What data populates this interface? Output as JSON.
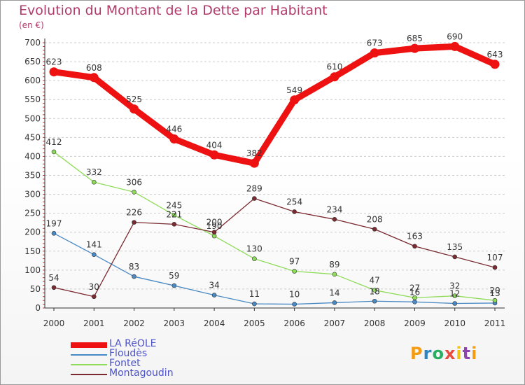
{
  "title": "Evolution du Montant de la Dette par Habitant",
  "unit_label": "(en €)",
  "logo": {
    "letters": [
      "P",
      "r",
      "o",
      "x",
      "i",
      "t",
      "i"
    ],
    "colors": [
      "#f39c12",
      "#2e86c1",
      "#27ae60",
      "#e74c3c",
      "#f1c40f",
      "#8e44ad",
      "#f39c12"
    ]
  },
  "chart_data": {
    "type": "line",
    "title": "Evolution du Montant de la Dette par Habitant",
    "ylabel": "(en €)",
    "xlabel": "",
    "categories": [
      "2000",
      "2001",
      "2002",
      "2003",
      "2004",
      "2005",
      "2006",
      "2007",
      "2008",
      "2009",
      "2010",
      "2011"
    ],
    "ylim": [
      0,
      700
    ],
    "yticks": [
      0,
      50,
      100,
      150,
      200,
      250,
      300,
      350,
      400,
      450,
      500,
      550,
      600,
      650,
      700
    ],
    "grid": "horizontal",
    "legend": "bottom-left",
    "series": [
      {
        "name": "LA RéOLE",
        "color": "#ee1111",
        "thick": true,
        "values": [
          623,
          608,
          525,
          446,
          404,
          382,
          549,
          610,
          673,
          685,
          690,
          643
        ]
      },
      {
        "name": "Floudès",
        "color": "#4a8ac4",
        "thick": false,
        "values": [
          197,
          141,
          83,
          59,
          34,
          11,
          10,
          14,
          18,
          16,
          12,
          13
        ]
      },
      {
        "name": "Fontet",
        "color": "#8fdc5a",
        "thick": false,
        "values": [
          412,
          332,
          306,
          245,
          190,
          130,
          97,
          89,
          47,
          27,
          32,
          20
        ]
      },
      {
        "name": "Montagoudin",
        "color": "#7a2a30",
        "thick": false,
        "values": [
          54,
          30,
          226,
          221,
          200,
          289,
          254,
          234,
          208,
          163,
          135,
          107
        ]
      }
    ]
  }
}
